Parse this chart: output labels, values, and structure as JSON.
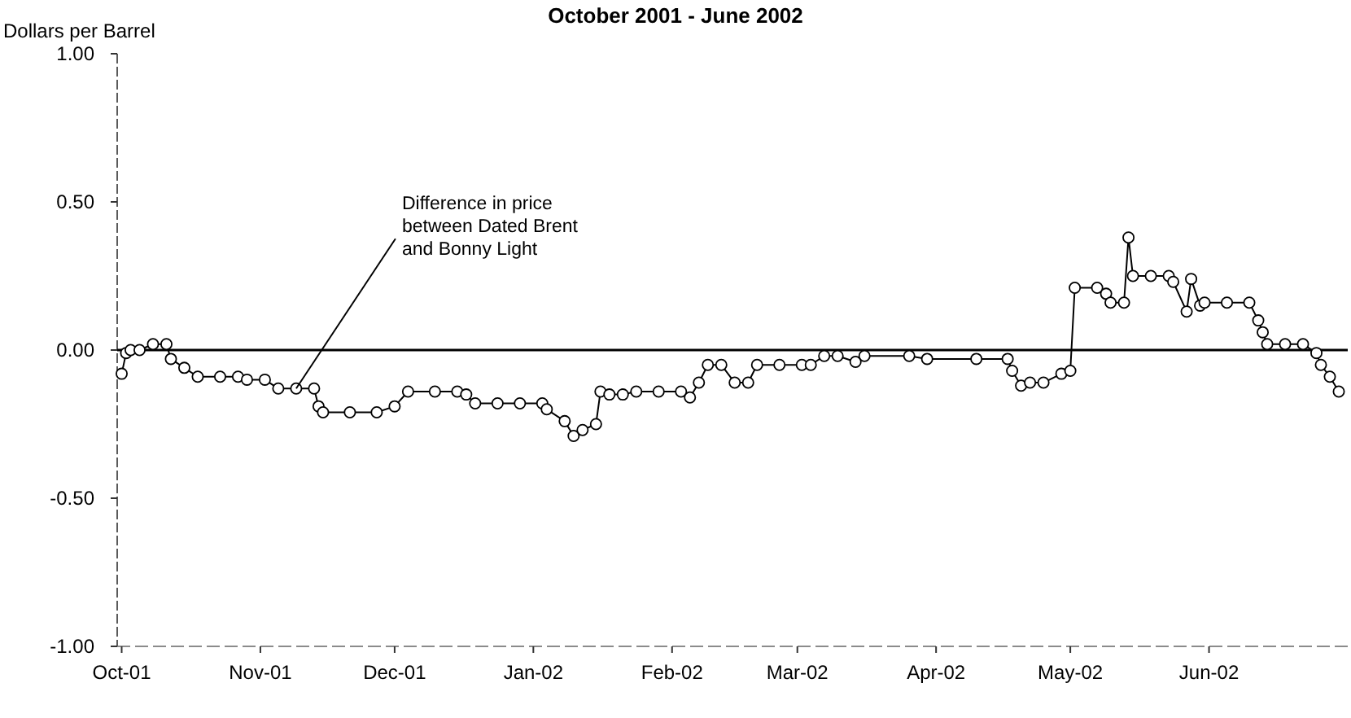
{
  "chart_data": {
    "type": "line",
    "title": "October 2001 - June 2002",
    "ylabel": "Dollars per Barrel",
    "x": [
      "2001-10-01",
      "2001-10-02",
      "2001-10-03",
      "2001-10-05",
      "2001-10-08",
      "2001-10-11",
      "2001-10-12",
      "2001-10-15",
      "2001-10-18",
      "2001-10-23",
      "2001-10-27",
      "2001-10-29",
      "2001-11-02",
      "2001-11-05",
      "2001-11-09",
      "2001-11-13",
      "2001-11-14",
      "2001-11-15",
      "2001-11-21",
      "2001-11-27",
      "2001-12-01",
      "2001-12-04",
      "2001-12-10",
      "2001-12-15",
      "2001-12-17",
      "2001-12-19",
      "2001-12-24",
      "2001-12-29",
      "2002-01-03",
      "2002-01-04",
      "2002-01-08",
      "2002-01-10",
      "2002-01-12",
      "2002-01-15",
      "2002-01-16",
      "2002-01-18",
      "2002-01-21",
      "2002-01-24",
      "2002-01-29",
      "2002-02-03",
      "2002-02-05",
      "2002-02-07",
      "2002-02-09",
      "2002-02-12",
      "2002-02-15",
      "2002-02-18",
      "2002-02-20",
      "2002-02-25",
      "2002-03-02",
      "2002-03-04",
      "2002-03-07",
      "2002-03-10",
      "2002-03-14",
      "2002-03-16",
      "2002-03-26",
      "2002-03-30",
      "2002-04-10",
      "2002-04-17",
      "2002-04-18",
      "2002-04-20",
      "2002-04-22",
      "2002-04-25",
      "2002-04-29",
      "2002-05-01",
      "2002-05-02",
      "2002-05-07",
      "2002-05-09",
      "2002-05-10",
      "2002-05-13",
      "2002-05-14",
      "2002-05-15",
      "2002-05-19",
      "2002-05-23",
      "2002-05-24",
      "2002-05-27",
      "2002-05-28",
      "2002-05-30",
      "2002-05-31",
      "2002-06-05",
      "2002-06-10",
      "2002-06-12",
      "2002-06-13",
      "2002-06-14",
      "2002-06-18",
      "2002-06-22",
      "2002-06-25",
      "2002-06-26",
      "2002-06-28",
      "2002-06-30"
    ],
    "series": [
      {
        "color": "#000000",
        "values": [
          -0.08,
          -0.01,
          0.0,
          0.0,
          0.02,
          0.02,
          -0.03,
          -0.06,
          -0.09,
          -0.09,
          -0.09,
          -0.1,
          -0.1,
          -0.13,
          -0.13,
          -0.13,
          -0.19,
          -0.21,
          -0.21,
          -0.21,
          -0.19,
          -0.14,
          -0.14,
          -0.14,
          -0.15,
          -0.18,
          -0.18,
          -0.18,
          -0.18,
          -0.2,
          -0.24,
          -0.29,
          -0.27,
          -0.25,
          -0.14,
          -0.15,
          -0.15,
          -0.14,
          -0.14,
          -0.14,
          -0.16,
          -0.11,
          -0.05,
          -0.05,
          -0.11,
          -0.11,
          -0.05,
          -0.05,
          -0.05,
          -0.05,
          -0.02,
          -0.02,
          -0.04,
          -0.02,
          -0.02,
          -0.03,
          -0.03,
          -0.03,
          -0.07,
          -0.12,
          -0.11,
          -0.11,
          -0.08,
          -0.07,
          0.21,
          0.21,
          0.19,
          0.16,
          0.16,
          0.38,
          0.25,
          0.25,
          0.25,
          0.23,
          0.13,
          0.24,
          0.15,
          0.16,
          0.16,
          0.16,
          0.1,
          0.06,
          0.02,
          0.02,
          0.02,
          -0.01,
          -0.05,
          -0.09,
          -0.14
        ]
      }
    ],
    "xlim": [
      "2001-09-30",
      "2002-07-02"
    ],
    "xticks": [
      {
        "value": "2001-10-01",
        "label": "Oct-01"
      },
      {
        "value": "2001-11-01",
        "label": "Nov-01"
      },
      {
        "value": "2001-12-01",
        "label": "Dec-01"
      },
      {
        "value": "2002-01-01",
        "label": "Jan-02"
      },
      {
        "value": "2002-02-01",
        "label": "Feb-02"
      },
      {
        "value": "2002-03-01",
        "label": "Mar-02"
      },
      {
        "value": "2002-04-01",
        "label": "Apr-02"
      },
      {
        "value": "2002-05-01",
        "label": "May-02"
      },
      {
        "value": "2002-06-01",
        "label": "Jun-02"
      }
    ],
    "ylim": [
      -1,
      1
    ],
    "yticks": [
      {
        "value": 1,
        "label": "1.00"
      },
      {
        "value": 0.5,
        "label": "0.50"
      },
      {
        "value": 0,
        "label": "0.00"
      },
      {
        "value": -0.5,
        "label": "-0.50"
      },
      {
        "value": -1,
        "label": "-1.00"
      }
    ],
    "ref_lines": [
      {
        "axis": "y",
        "value": 0,
        "color": "#000000"
      }
    ],
    "annotations": [
      {
        "text": "Difference in price between Dated Brent and Bonny Light",
        "x": "2001-11-09",
        "y": -0.13
      }
    ],
    "marker": "circle",
    "line_style": "solid"
  }
}
